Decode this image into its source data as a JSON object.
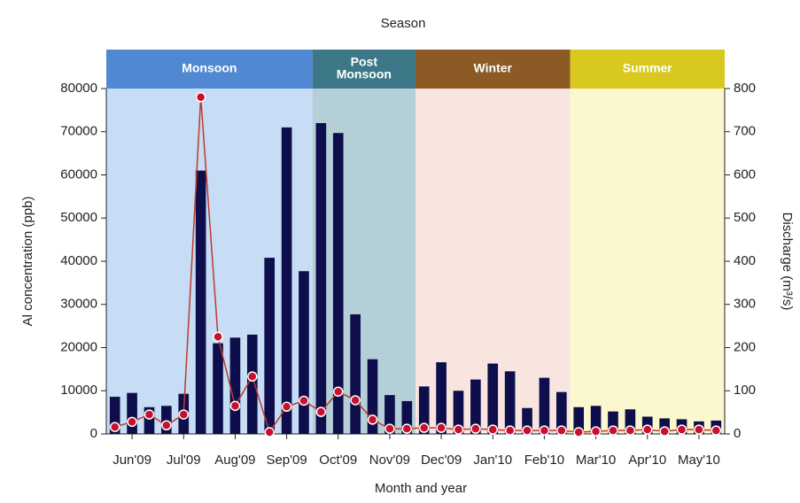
{
  "chart_data": {
    "type": "bar-line",
    "title": "Season",
    "xlabel": "Month and year",
    "ylabel": "Al concentration (ppb)",
    "y2label": "Discharge (m³/s)",
    "categories": [
      null,
      "Jun'09",
      null,
      null,
      "Jul'09",
      null,
      null,
      "Aug'09",
      null,
      null,
      "Sep'09",
      null,
      null,
      "Oct'09",
      null,
      null,
      "Nov'09",
      null,
      null,
      "Dec'09",
      null,
      null,
      "Jan'10",
      null,
      null,
      "Feb'10",
      null,
      null,
      "Mar'10",
      null,
      null,
      "Apr'10",
      null,
      null,
      "May'10",
      null
    ],
    "seasons": [
      {
        "label_lines": [
          "Monsoon"
        ],
        "from": "Jun'09",
        "to": "Sep'09",
        "color": "#5089d2",
        "background": "#c6ddf5"
      },
      {
        "label_lines": [
          "Post",
          "Monsoon"
        ],
        "from": "Oct'09",
        "to": "Nov'09",
        "color": "#3d7889",
        "background": "#b5cfd8"
      },
      {
        "label_lines": [
          "Winter"
        ],
        "from": "Dec'09",
        "to": "Feb'10",
        "color": "#8c5a24",
        "background": "#f8e5e0"
      },
      {
        "label_lines": [
          "Summer"
        ],
        "from": "Mar'10",
        "to": "May'10",
        "color": "#d9c81e",
        "background": "#fbf7cf"
      }
    ],
    "series": [
      {
        "type": "bar",
        "color": "#0e0e4c",
        "values": [
          8600,
          9500,
          6200,
          6500,
          9300,
          61000,
          21000,
          22300,
          23000,
          40800,
          71000,
          37700,
          72000,
          69700,
          27700,
          17300,
          9000,
          7600,
          11000,
          16600,
          10000,
          12600,
          16300,
          14500,
          6000,
          13000,
          9700,
          6200,
          6500,
          5200,
          5700,
          4000,
          3600,
          3400,
          2900,
          3100
        ]
      },
      {
        "type": "line",
        "axis": "y2",
        "color": "#c0392b",
        "marker_color": "#c8102e",
        "values": [
          16,
          28,
          45,
          20,
          45,
          780,
          225,
          65,
          133,
          4,
          63,
          77,
          51,
          98,
          78,
          33,
          12,
          12,
          14,
          14,
          10,
          12,
          10,
          8,
          8,
          8,
          8,
          4,
          6,
          8,
          8,
          10,
          6,
          10,
          10,
          8
        ]
      }
    ],
    "ylim": [
      0,
      80000
    ],
    "yticks": [
      0,
      10000,
      20000,
      30000,
      40000,
      50000,
      60000,
      70000,
      80000
    ],
    "y2lim": [
      0,
      800
    ],
    "y2ticks": [
      0,
      100,
      200,
      300,
      400,
      500,
      600,
      700,
      800
    ]
  }
}
